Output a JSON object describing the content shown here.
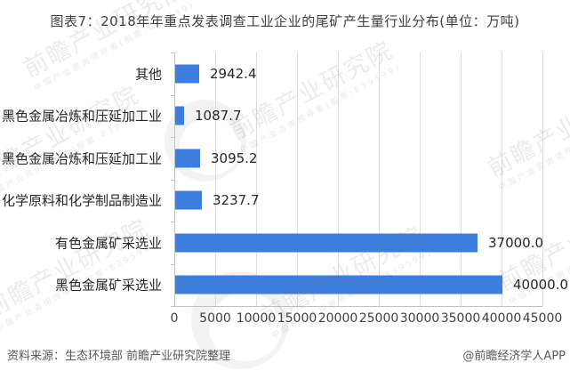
{
  "title": "图表7：2018年年重点发表调查工业企业的尾矿产生量行业分布(单位：万吨)",
  "chart_data": {
    "type": "bar",
    "orientation": "horizontal",
    "title": "图表7：2018年年重点发表调查工业企业的尾矿产生量行业分布(单位：万吨)",
    "categories": [
      "其他",
      "黑色金属冶炼和压延加工业",
      "黑色金属冶炼和压延加工业",
      "化学原料和化学制品制造业",
      "有色金属矿采选业",
      "黑色金属矿采选业"
    ],
    "values": [
      2942.4,
      1087.7,
      3095.2,
      3237.7,
      37000.0,
      40000.0
    ],
    "value_labels": [
      "2942.4",
      "1087.7",
      "3095.2",
      "3237.7",
      "37000.0",
      "40000.0"
    ],
    "xlim": [
      0,
      45000
    ],
    "x_tick_labels": [
      "0",
      "5000",
      "10000",
      "15000",
      "20000",
      "25000",
      "30000",
      "35000",
      "40000",
      "45000"
    ],
    "grid": true,
    "legend": "none",
    "bar_color": "#3d7ddd"
  },
  "footer": {
    "source": "资料来源：生态环境部 前瞻产业研究院整理",
    "credit": "@前瞻经济学人APP"
  },
  "watermark": {
    "main": "前瞻产业研究院",
    "sub": "中国产业咨询领导者(股票:839599)"
  },
  "colors": {
    "bar": "#3d7ddd",
    "grid": "#dcdcdc",
    "axis": "#c2c2c2",
    "title_text": "#3f3f3f",
    "label_text": "#262626",
    "footer_text": "#595959"
  }
}
